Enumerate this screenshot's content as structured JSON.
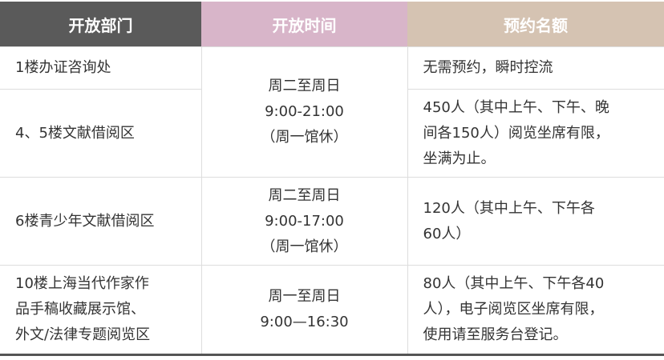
{
  "header": {
    "col1": "开放部门",
    "col2": "开放时间",
    "col3": "预约名额"
  },
  "colors": {
    "header1": "#5a5a5a",
    "header2": "#d8b5c9",
    "header3": "#d5c3b2"
  },
  "rows": [
    {
      "dept": [
        "1楼办证咨询处"
      ],
      "quota": [
        "无需预约，瞬时控流"
      ]
    },
    {
      "dept": [
        "4、5楼文献借阅区"
      ],
      "quota": [
        "450人（其中上午、下午、晚",
        "间各150人）阅览坐席有限，",
        "坐满为止。"
      ]
    },
    {
      "dept": [
        "6楼青少年文献借阅区"
      ],
      "time": [
        "周二至周日",
        "9:00-17:00",
        "（周一馆休）"
      ],
      "quota": [
        "120人（其中上午、下午各",
        "60人）"
      ]
    },
    {
      "dept": [
        "10楼上海当代作家作",
        "品手稿收藏展示馆、",
        "外文/法律专题阅览区"
      ],
      "time": [
        "周一至周日",
        "9:00—16:30"
      ],
      "quota": [
        "80人（其中上午、下午各40",
        "人），电子阅览区坐席有限，",
        "使用请至服务台登记。"
      ]
    }
  ],
  "shared_time": [
    "周二至周日",
    "9:00-21:00",
    "（周一馆休）"
  ]
}
